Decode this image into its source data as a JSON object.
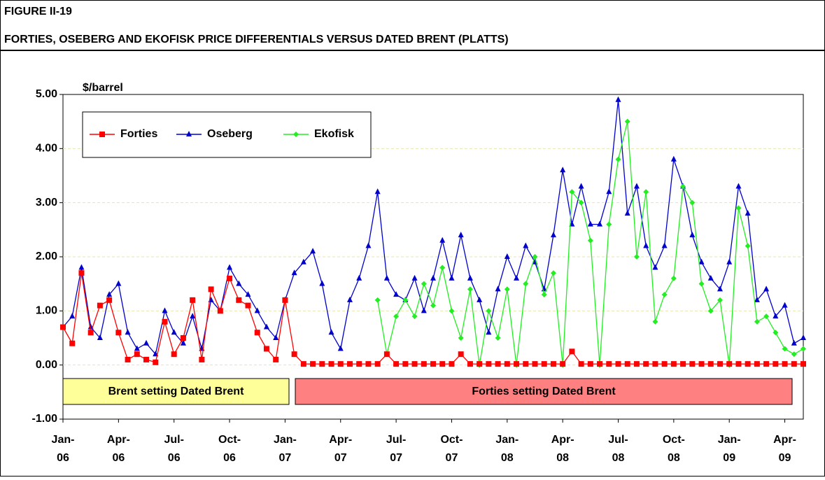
{
  "chart_data": {
    "type": "line",
    "figure_label": "FIGURE II-19",
    "title": "FORTIES, OSEBERG AND EKOFISK PRICE DIFFERENTIALS VERSUS DATED BRENT (PLATTS)",
    "y_label": "$/barrel",
    "legend": "upper left",
    "grid": true,
    "annotations": [
      {
        "text": "Brent setting Dated Brent",
        "color": "#ffff99"
      },
      {
        "text": "Forties setting Dated Brent",
        "color": "#ff8080"
      }
    ],
    "xlim": [
      0,
      40
    ],
    "xticks": [
      {
        "value": 0,
        "label": "Jan-\n06"
      },
      {
        "value": 3,
        "label": "Apr-\n06"
      },
      {
        "value": 6,
        "label": "Jul-\n06"
      },
      {
        "value": 9,
        "label": "Oct-\n06"
      },
      {
        "value": 12,
        "label": "Jan-\n07"
      },
      {
        "value": 15,
        "label": "Apr-\n07"
      },
      {
        "value": 18,
        "label": "Jul-\n07"
      },
      {
        "value": 21,
        "label": "Oct-\n07"
      },
      {
        "value": 24,
        "label": "Jan-\n08"
      },
      {
        "value": 27,
        "label": "Apr-\n08"
      },
      {
        "value": 30,
        "label": "Jul-\n08"
      },
      {
        "value": 33,
        "label": "Oct-\n08"
      },
      {
        "value": 36,
        "label": "Jan-\n09"
      },
      {
        "value": 39,
        "label": "Apr-\n09"
      }
    ],
    "ylim": [
      -1,
      5
    ],
    "yticks": [
      {
        "value": -1,
        "label": "-1.00"
      },
      {
        "value": 0,
        "label": "0.00"
      },
      {
        "value": 1,
        "label": "1.00"
      },
      {
        "value": 2,
        "label": "2.00"
      },
      {
        "value": 3,
        "label": "3.00"
      },
      {
        "value": 4,
        "label": "4.00"
      },
      {
        "value": 5,
        "label": "5.00"
      }
    ],
    "x": [
      0,
      0.5,
      1,
      1.5,
      2,
      2.5,
      3,
      3.5,
      4,
      4.5,
      5,
      5.5,
      6,
      6.5,
      7,
      7.5,
      8,
      8.5,
      9,
      9.5,
      10,
      10.5,
      11,
      11.5,
      12,
      12.5,
      13,
      13.5,
      14,
      14.5,
      15,
      15.5,
      16,
      16.5,
      17,
      17.5,
      18,
      18.5,
      19,
      19.5,
      20,
      20.5,
      21,
      21.5,
      22,
      22.5,
      23,
      23.5,
      24,
      24.5,
      25,
      25.5,
      26,
      26.5,
      27,
      27.5,
      28,
      28.5,
      29,
      29.5,
      30,
      30.5,
      31,
      31.5,
      32,
      32.5,
      33,
      33.5,
      34,
      34.5,
      35,
      35.5,
      36,
      36.5,
      37,
      37.5,
      38,
      38.5,
      39,
      39.5,
      40
    ],
    "series": [
      {
        "name": "Oseberg",
        "color": "#0000cc",
        "marker": "triangle",
        "values": [
          0.7,
          0.9,
          1.8,
          0.7,
          0.5,
          1.3,
          1.5,
          0.6,
          0.3,
          0.4,
          0.2,
          1.0,
          0.6,
          0.4,
          0.9,
          0.3,
          1.2,
          1.0,
          1.8,
          1.5,
          1.3,
          1.0,
          0.7,
          0.5,
          1.2,
          1.7,
          1.9,
          2.1,
          1.5,
          0.6,
          0.3,
          1.2,
          1.6,
          2.2,
          3.2,
          1.6,
          1.3,
          1.2,
          1.6,
          1.0,
          1.6,
          2.3,
          1.6,
          2.4,
          1.6,
          1.2,
          0.6,
          1.4,
          2.0,
          1.6,
          2.2,
          1.9,
          1.4,
          2.4,
          3.6,
          2.6,
          3.3,
          2.6,
          2.6,
          3.2,
          4.9,
          2.8,
          3.3,
          2.2,
          1.8,
          2.2,
          3.8,
          3.3,
          2.4,
          1.9,
          1.6,
          1.4,
          1.9,
          3.3,
          2.8,
          1.2,
          1.4,
          0.9,
          1.1,
          0.4,
          0.5
        ]
      },
      {
        "name": "Ekofisk",
        "color": "#22ee22",
        "marker": "diamond",
        "values": [
          null,
          null,
          null,
          null,
          null,
          null,
          null,
          null,
          null,
          null,
          null,
          null,
          null,
          null,
          null,
          null,
          null,
          null,
          null,
          null,
          null,
          null,
          null,
          null,
          null,
          null,
          null,
          null,
          null,
          null,
          null,
          null,
          null,
          null,
          1.2,
          0.2,
          0.9,
          1.2,
          0.9,
          1.5,
          1.1,
          1.8,
          1.0,
          0.5,
          1.4,
          0.0,
          1.0,
          0.5,
          1.4,
          0.0,
          1.5,
          2.0,
          1.3,
          1.7,
          0.0,
          3.2,
          3.0,
          2.3,
          0.0,
          2.6,
          3.8,
          4.5,
          2.0,
          3.2,
          0.8,
          1.3,
          1.6,
          3.3,
          3.0,
          1.5,
          1.0,
          1.2,
          0.0,
          2.9,
          2.2,
          0.8,
          0.9,
          0.6,
          0.3,
          0.2,
          0.3
        ]
      },
      {
        "name": "Forties",
        "color": "#ff0000",
        "marker": "square",
        "values": [
          0.7,
          0.4,
          1.7,
          0.6,
          1.1,
          1.2,
          0.6,
          0.1,
          0.2,
          0.1,
          0.05,
          0.8,
          0.2,
          0.5,
          1.2,
          0.1,
          1.4,
          1.0,
          1.6,
          1.2,
          1.1,
          0.6,
          0.3,
          0.1,
          1.2,
          0.2,
          0.02,
          0.02,
          0.02,
          0.02,
          0.02,
          0.02,
          0.02,
          0.02,
          0.02,
          0.2,
          0.02,
          0.02,
          0.02,
          0.02,
          0.02,
          0.02,
          0.02,
          0.2,
          0.02,
          0.02,
          0.02,
          0.02,
          0.02,
          0.02,
          0.02,
          0.02,
          0.02,
          0.02,
          0.02,
          0.25,
          0.02,
          0.02,
          0.02,
          0.02,
          0.02,
          0.02,
          0.02,
          0.02,
          0.02,
          0.02,
          0.02,
          0.02,
          0.02,
          0.02,
          0.02,
          0.02,
          0.02,
          0.02,
          0.02,
          0.02,
          0.02,
          0.02,
          0.02,
          0.02,
          0.02
        ]
      }
    ]
  }
}
